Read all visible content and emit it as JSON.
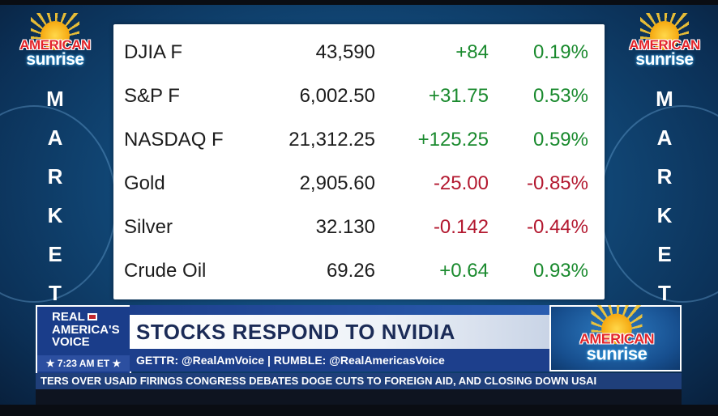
{
  "brand": {
    "logo_line1": "AMERICAN",
    "logo_line2": "sunrise",
    "side_word": [
      "M",
      "A",
      "R",
      "K",
      "E",
      "T"
    ]
  },
  "market_table": {
    "rows": [
      {
        "name": "DJIA F",
        "value": "43,590",
        "change": "+84",
        "percent": "0.19%",
        "direction": "up"
      },
      {
        "name": "S&P F",
        "value": "6,002.50",
        "change": "+31.75",
        "percent": "0.53%",
        "direction": "up"
      },
      {
        "name": "NASDAQ F",
        "value": "21,312.25",
        "change": "+125.25",
        "percent": "0.59%",
        "direction": "up"
      },
      {
        "name": "Gold",
        "value": "2,905.60",
        "change": "-25.00",
        "percent": "-0.85%",
        "direction": "down"
      },
      {
        "name": "Silver",
        "value": "32.130",
        "change": "-0.142",
        "percent": "-0.44%",
        "direction": "down"
      },
      {
        "name": "Crude Oil",
        "value": "69.26",
        "change": "+0.64",
        "percent": "0.93%",
        "direction": "up"
      }
    ]
  },
  "lower_third": {
    "network_line1": "REAL",
    "network_line2": "AMERICA'S",
    "network_line3": "VOICE",
    "time": "★ 7:23 AM ET ★",
    "headline": "STOCKS RESPOND TO NVIDIA",
    "social": "GETTR: @RealAmVoice  |  RUMBLE: @RealAmericasVoice"
  },
  "ticker": {
    "text": "TERS OVER USAID FIRINGS     CONGRESS DEBATES DOGE CUTS TO FOREIGN AID, AND CLOSING DOWN USAI"
  },
  "colors": {
    "positive": "#1a8a2e",
    "negative": "#b3182f",
    "background": "#124c7d",
    "headline_text": "#1b2b57"
  }
}
